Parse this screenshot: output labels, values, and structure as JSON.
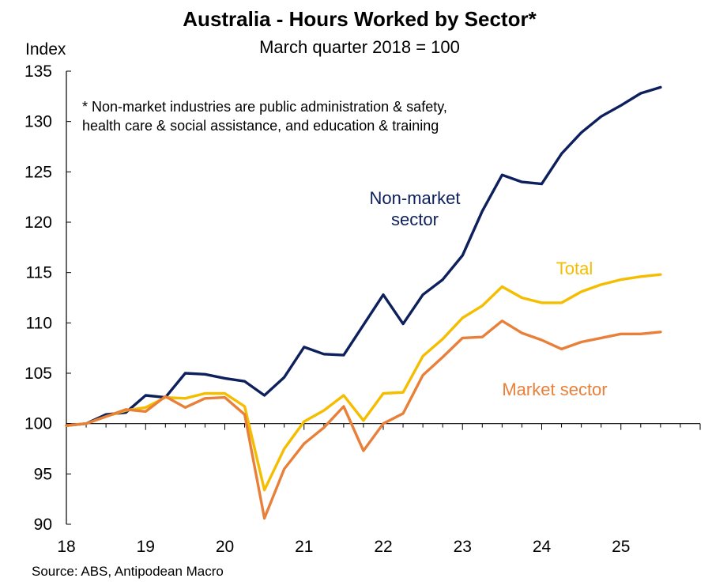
{
  "chart_data": {
    "type": "line",
    "title": "Australia - Hours Worked by Sector*",
    "subtitle": "March quarter 2018 = 100",
    "ylabel": "Index",
    "xlabel": "",
    "ylim": [
      90,
      135
    ],
    "yticks": [
      90,
      95,
      100,
      105,
      110,
      115,
      120,
      125,
      130,
      135
    ],
    "xlim": [
      18,
      26
    ],
    "xticks": [
      18,
      19,
      20,
      21,
      22,
      23,
      24,
      25
    ],
    "xtick_labels": [
      "18",
      "19",
      "20",
      "21",
      "22",
      "23",
      "24",
      "25"
    ],
    "baseline": 100,
    "note_lines": [
      "* Non-market industries are public administration & safety,",
      "health care & social assistance, and education & training"
    ],
    "source": "Source: ABS, Antipodean Macro",
    "x": [
      18.0,
      18.25,
      18.5,
      18.75,
      19.0,
      19.25,
      19.5,
      19.75,
      20.0,
      20.25,
      20.5,
      20.75,
      21.0,
      21.25,
      21.5,
      21.75,
      22.0,
      22.25,
      22.5,
      22.75,
      23.0,
      23.25,
      23.5,
      23.75,
      24.0,
      24.25,
      24.5,
      24.75,
      25.0,
      25.25,
      25.5
    ],
    "series": [
      {
        "name": "Non-market sector",
        "label_lines": [
          "Non-market",
          "sector"
        ],
        "color": "#0d1f5c",
        "values": [
          99.8,
          100.0,
          100.9,
          101.1,
          102.8,
          102.6,
          105.0,
          104.9,
          104.5,
          104.2,
          102.8,
          104.6,
          107.6,
          106.9,
          106.8,
          109.8,
          112.8,
          109.9,
          112.8,
          114.3,
          116.7,
          121.1,
          124.7,
          124.0,
          123.8,
          126.8,
          128.9,
          130.5,
          131.6,
          132.8,
          133.4
        ]
      },
      {
        "name": "Total",
        "label_lines": [
          "Total"
        ],
        "color": "#f5bd00",
        "values": [
          99.8,
          100.0,
          100.7,
          101.3,
          101.6,
          102.6,
          102.5,
          103.0,
          103.0,
          101.7,
          93.4,
          97.5,
          100.2,
          101.3,
          102.8,
          100.3,
          103.0,
          103.1,
          106.7,
          108.4,
          110.5,
          111.7,
          113.6,
          112.5,
          112.0,
          112.0,
          113.1,
          113.8,
          114.3,
          114.6,
          114.8
        ]
      },
      {
        "name": "Market sector",
        "label_lines": [
          "Market sector"
        ],
        "color": "#e8803a",
        "values": [
          99.8,
          100.0,
          100.7,
          101.4,
          101.2,
          102.7,
          101.6,
          102.5,
          102.6,
          100.9,
          90.6,
          95.5,
          98.0,
          99.6,
          101.7,
          97.3,
          100.0,
          101.0,
          104.8,
          106.6,
          108.5,
          108.6,
          110.2,
          109.0,
          108.3,
          107.4,
          108.1,
          108.5,
          108.9,
          108.9,
          109.1
        ]
      }
    ]
  }
}
